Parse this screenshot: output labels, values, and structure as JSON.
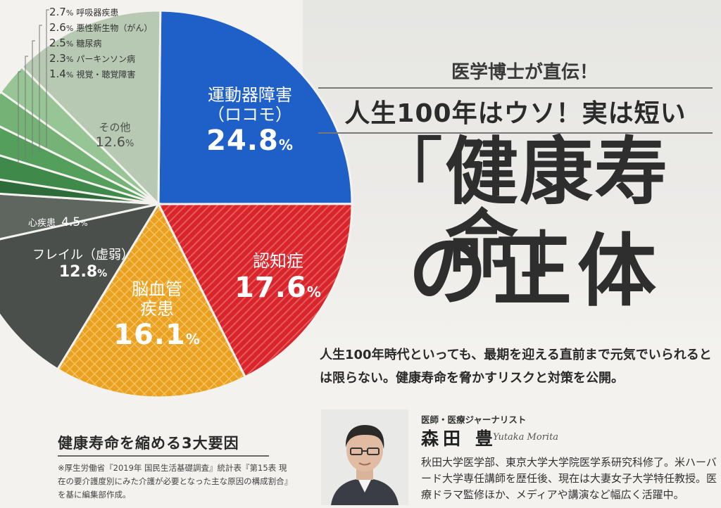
{
  "article": {
    "kicker": "医学博士が直伝！",
    "subtitle": "人生100年はウソ！実は短い",
    "title_open_bracket": "「",
    "title_main": "健康寿命",
    "title_close_bracket": "」",
    "title_second": "の正体",
    "lede": "人生100年時代といっても、最期を迎える直前まで元気でいられるとは限らない。健康寿命を脅かすリスクと対策を公開。"
  },
  "chart_caption": {
    "title": "健康寿命を縮める3大要因",
    "note": "※厚生労働省『2019年 国民生活基礎調査』統計表『第15表 現在の要介護度別にみた介護が必要となった主な原因の構成割合』を基に編集部作成。"
  },
  "author": {
    "role": "医師・医療ジャーナリスト",
    "name": "森田 豊",
    "name_roman": "Yutaka Morita",
    "bio": "秋田大学医学部、東京大学大学院医学系研究科修了。米ハーバード大学専任講師を歴任後、現在は大妻女子大学特任教授。医療ドラマ監修ほか、メディアや講演など幅広く活躍中。"
  },
  "chart_data": {
    "type": "pie",
    "unit": "%",
    "slices": [
      {
        "name": "運動器障害（ロコモ）",
        "name_line1": "運動器障害",
        "name_line2": "（ロコモ）",
        "value": 24.8,
        "color": "#1f5fc8"
      },
      {
        "name": "認知症",
        "name_line1": "認知症",
        "value": 17.6,
        "color": "#d7252b"
      },
      {
        "name": "脳血管疾患",
        "name_line1": "脳血管",
        "name_line2": "疾患",
        "value": 16.1,
        "color": "#eaa020"
      },
      {
        "name": "フレイル（虚弱）",
        "name_line1": "フレイル（虚弱）",
        "value": 12.8,
        "color": "#4b4f4c"
      },
      {
        "name": "心疾患",
        "name_line1": "心疾患",
        "value": 4.5,
        "color": "#5f6660"
      },
      {
        "name": "視覚・聴覚障害",
        "value": 1.4,
        "color": "#2e6b3a"
      },
      {
        "name": "パーキンソン病",
        "value": 2.3,
        "color": "#3f8a4b"
      },
      {
        "name": "糖尿病",
        "value": 2.5,
        "color": "#559f5c"
      },
      {
        "name": "悪性新生物（がん）",
        "value": 2.6,
        "color": "#74b276"
      },
      {
        "name": "呼吸器疾患",
        "value": 2.7,
        "color": "#97c596"
      },
      {
        "name": "その他",
        "name_line1": "その他",
        "value": 12.6,
        "color": "#b8c9b3"
      }
    ],
    "legend": [
      {
        "value": "2.7",
        "unit": "%",
        "name": "呼吸器疾患"
      },
      {
        "value": "2.6",
        "unit": "%",
        "name": "悪性新生物（がん）"
      },
      {
        "value": "2.5",
        "unit": "%",
        "name": "糖尿病"
      },
      {
        "value": "2.3",
        "unit": "%",
        "name": "パーキンソン病"
      },
      {
        "value": "1.4",
        "unit": "%",
        "name": "視覚・聴覚障害"
      }
    ],
    "labels": {
      "locomo_value": "24.8",
      "dementia_value": "17.6",
      "stroke_value": "16.1",
      "frailty_value": "12.8",
      "heart_value": "4.5",
      "other_value": "12.6",
      "pct": "%"
    }
  }
}
